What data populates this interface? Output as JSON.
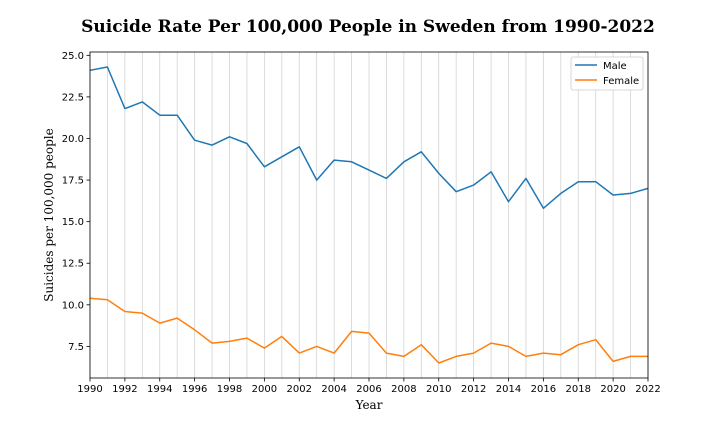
{
  "chart_data": {
    "type": "line",
    "title": "Suicide Rate Per 100,000 People in Sweden from 1990-2022",
    "xlabel": "Year",
    "ylabel": "Suicides per 100,000 people",
    "xlim": [
      1990,
      2022
    ],
    "ylim": [
      5.6,
      25.2
    ],
    "xticks": [
      1990,
      1992,
      1994,
      1996,
      1998,
      2000,
      2002,
      2004,
      2006,
      2008,
      2010,
      2012,
      2014,
      2016,
      2018,
      2020,
      2022
    ],
    "yticks": [
      7.5,
      10.0,
      12.5,
      15.0,
      17.5,
      20.0,
      22.5,
      25.0
    ],
    "ytick_labels": [
      "7.5",
      "10.0",
      "12.5",
      "15.0",
      "17.5",
      "20.0",
      "22.5",
      "25.0"
    ],
    "grid": "vertical",
    "legend_position": "top-right",
    "x": [
      1990,
      1991,
      1992,
      1993,
      1994,
      1995,
      1996,
      1997,
      1998,
      1999,
      2000,
      2001,
      2002,
      2003,
      2004,
      2005,
      2006,
      2007,
      2008,
      2009,
      2010,
      2011,
      2012,
      2013,
      2014,
      2015,
      2016,
      2017,
      2018,
      2019,
      2020,
      2021,
      2022
    ],
    "series": [
      {
        "name": "Male",
        "color": "#1f77b4",
        "values": [
          24.1,
          24.3,
          21.8,
          22.2,
          21.4,
          21.4,
          19.9,
          19.6,
          20.1,
          19.7,
          18.3,
          18.9,
          19.5,
          17.5,
          18.7,
          18.6,
          18.1,
          17.6,
          18.6,
          19.2,
          17.9,
          16.8,
          17.2,
          18.0,
          16.2,
          17.6,
          15.8,
          16.7,
          17.4,
          17.4,
          16.6,
          16.7,
          17.0
        ]
      },
      {
        "name": "Female",
        "color": "#ff7f0e",
        "values": [
          10.4,
          10.3,
          9.6,
          9.5,
          8.9,
          9.2,
          8.5,
          7.7,
          7.8,
          8.0,
          7.4,
          8.1,
          7.1,
          7.5,
          7.1,
          8.4,
          8.3,
          7.1,
          6.9,
          7.6,
          6.5,
          6.9,
          7.1,
          7.7,
          7.5,
          6.9,
          7.1,
          7.0,
          7.6,
          7.9,
          6.6,
          6.9,
          6.9
        ]
      }
    ]
  }
}
